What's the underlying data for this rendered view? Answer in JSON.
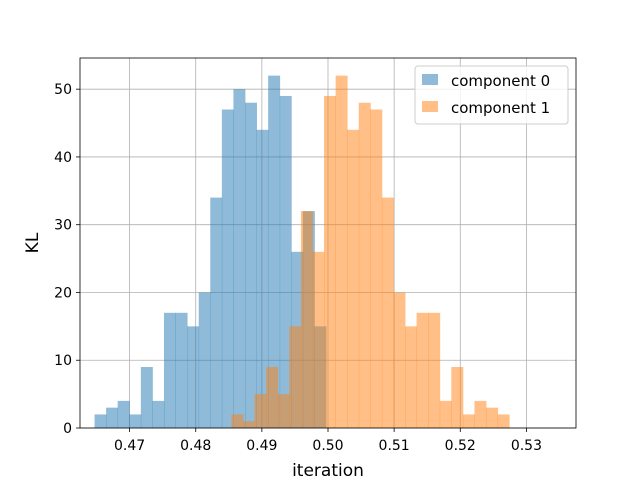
{
  "chart_data": {
    "type": "histogram",
    "xlabel": "iteration",
    "ylabel": "KL",
    "xlim": [
      0.4625,
      0.5375
    ],
    "ylim": [
      0,
      54.6
    ],
    "xticks": [
      0.47,
      0.48,
      0.49,
      0.5,
      0.51,
      0.52,
      0.53
    ],
    "xtick_labels": [
      "0.47",
      "0.48",
      "0.49",
      "0.50",
      "0.51",
      "0.52",
      "0.53"
    ],
    "yticks": [
      0,
      10,
      20,
      30,
      40,
      50
    ],
    "ytick_labels": [
      "0",
      "10",
      "20",
      "30",
      "40",
      "50"
    ],
    "grid": true,
    "legend_position": "top-right",
    "bar_alpha": 0.5,
    "series": [
      {
        "name": "component 0",
        "color": "#1f77b4",
        "bin_start": 0.4647,
        "bin_width": 0.00175,
        "counts": [
          2,
          3,
          4,
          2,
          9,
          4,
          17,
          17,
          15,
          20,
          34,
          47,
          50,
          48,
          44,
          52,
          49,
          26,
          32,
          15
        ]
      },
      {
        "name": "component 1",
        "color": "#ff7f0e",
        "bin_start": 0.4854,
        "bin_width": 0.00175,
        "counts": [
          2,
          1,
          5,
          9,
          5,
          15,
          32,
          26,
          49,
          52,
          44,
          48,
          47,
          34,
          20,
          15,
          17,
          17,
          4,
          9,
          2,
          4,
          3,
          2
        ]
      }
    ]
  }
}
